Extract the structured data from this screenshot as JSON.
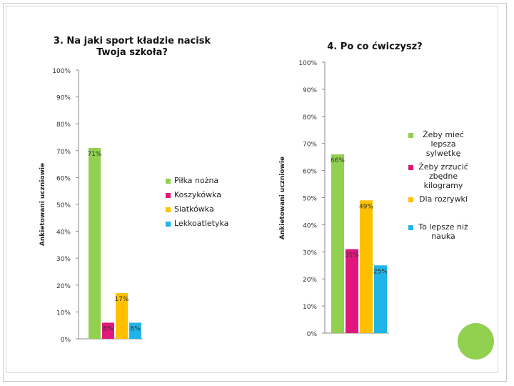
{
  "colors": {
    "green": "#92d050",
    "magenta": "#e0187e",
    "orange": "#ffc000",
    "blue": "#1fb5e8",
    "frame": "#c9c9c9"
  },
  "chart_data": [
    {
      "type": "bar",
      "title": "3. Na jaki sport kładzie nacisk Twoja szkoła?",
      "ylabel": "Ankietowani uczniowie",
      "ylim": [
        0,
        100
      ],
      "y_ticks": [
        "0%",
        "10%",
        "20%",
        "30%",
        "40%",
        "50%",
        "60%",
        "70%",
        "80%",
        "90%",
        "100%"
      ],
      "grid": false,
      "legend": "right",
      "series": [
        {
          "name": "Piłka nożna",
          "value": 71,
          "label": "71%",
          "color": "#92d050"
        },
        {
          "name": "Koszykówka",
          "value": 6,
          "label": "6%",
          "color": "#e0187e"
        },
        {
          "name": "Siatkówka",
          "value": 17,
          "label": "17%",
          "color": "#ffc000"
        },
        {
          "name": "Lekkoatletyka",
          "value": 6,
          "label": "6%",
          "color": "#1fb5e8"
        }
      ]
    },
    {
      "type": "bar",
      "title": "4. Po co ćwiczysz?",
      "ylabel": "Ankietowani uczniowie",
      "ylim": [
        0,
        100
      ],
      "y_ticks": [
        "0%",
        "10%",
        "20%",
        "30%",
        "40%",
        "50%",
        "60%",
        "70%",
        "80%",
        "90%",
        "100%"
      ],
      "grid": false,
      "legend": "right",
      "series": [
        {
          "name": "Żeby mieć lepsza sylwetkę",
          "value": 66,
          "label": "66%",
          "color": "#92d050"
        },
        {
          "name": "Żeby zrzucić zbędne kilogramy",
          "value": 31,
          "label": "31%",
          "color": "#e0187e"
        },
        {
          "name": "Dla rozrywki",
          "value": 49,
          "label": "49%",
          "color": "#ffc000"
        },
        {
          "name": "To lepsze niż nauka",
          "value": 25,
          "label": "25%",
          "color": "#1fb5e8"
        }
      ]
    }
  ]
}
